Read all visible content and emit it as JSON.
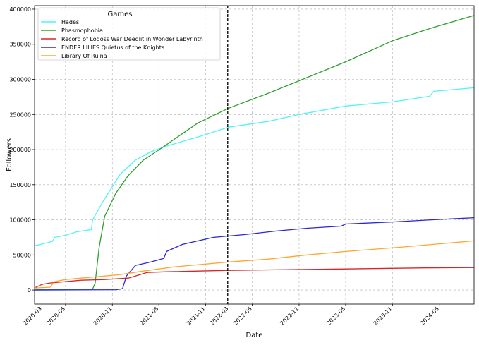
{
  "chart_data": {
    "type": "line",
    "title": "",
    "xlabel": "Date",
    "ylabel": "Followers",
    "xlim": [
      "2020-02-01",
      "2024-10-15"
    ],
    "ylim": [
      -20000,
      405000
    ],
    "grid": true,
    "x_ticks": [
      "2020-03",
      "2020-05",
      "2020-11",
      "2021-05",
      "2021-11",
      "2022-03",
      "2022-05",
      "2022-11",
      "2023-05",
      "2023-11",
      "2024-05"
    ],
    "x_tick_dates": [
      "2020-03-01",
      "2020-06-01",
      "2020-12-01",
      "2021-06-01",
      "2021-12-01",
      "2022-03-01",
      "2022-06-01",
      "2022-12-01",
      "2023-06-01",
      "2023-12-01",
      "2024-06-01"
    ],
    "y_ticks": [
      0,
      50000,
      100000,
      150000,
      200000,
      250000,
      300000,
      350000,
      400000
    ],
    "legend": {
      "title": "Games",
      "location": "top-left"
    },
    "annotations": [
      {
        "type": "vline",
        "x": "2022-02-25",
        "style": "dashed",
        "color": "#000000"
      }
    ],
    "series": [
      {
        "name": "Hades",
        "color": "#4ff5f0",
        "points": [
          [
            "2020-02-01",
            63000
          ],
          [
            "2020-04-10",
            69000
          ],
          [
            "2020-04-20",
            75000
          ],
          [
            "2020-06-01",
            78000
          ],
          [
            "2020-07-15",
            83000
          ],
          [
            "2020-09-10",
            86000
          ],
          [
            "2020-09-15",
            100000
          ],
          [
            "2020-11-01",
            130000
          ],
          [
            "2021-01-01",
            165000
          ],
          [
            "2021-03-01",
            185000
          ],
          [
            "2021-05-01",
            197000
          ],
          [
            "2021-07-01",
            205000
          ],
          [
            "2021-11-01",
            218000
          ],
          [
            "2022-03-01",
            232000
          ],
          [
            "2022-08-01",
            240000
          ],
          [
            "2022-12-01",
            250000
          ],
          [
            "2023-06-01",
            262000
          ],
          [
            "2023-12-01",
            268000
          ],
          [
            "2024-04-25",
            276000
          ],
          [
            "2024-05-10",
            283000
          ],
          [
            "2024-10-15",
            288000
          ]
        ]
      },
      {
        "name": "Phasmophobia",
        "color": "#2ca02c",
        "points": [
          [
            "2020-02-01",
            1000
          ],
          [
            "2020-09-15",
            1500
          ],
          [
            "2020-09-25",
            10000
          ],
          [
            "2020-10-10",
            60000
          ],
          [
            "2020-11-01",
            105000
          ],
          [
            "2020-12-15",
            138000
          ],
          [
            "2021-02-01",
            163000
          ],
          [
            "2021-04-01",
            185000
          ],
          [
            "2021-06-15",
            203000
          ],
          [
            "2021-08-01",
            215000
          ],
          [
            "2021-11-01",
            238000
          ],
          [
            "2022-03-01",
            259000
          ],
          [
            "2022-08-01",
            280000
          ],
          [
            "2022-12-01",
            298000
          ],
          [
            "2023-06-01",
            325000
          ],
          [
            "2023-12-01",
            355000
          ],
          [
            "2024-05-01",
            373000
          ],
          [
            "2024-10-15",
            391000
          ]
        ]
      },
      {
        "name": "Record of Lodoss War Deedlit in Wonder Labyrinth",
        "color": "#d62728",
        "points": [
          [
            "2020-02-01",
            3000
          ],
          [
            "2020-03-01",
            8000
          ],
          [
            "2020-04-01",
            10000
          ],
          [
            "2020-08-01",
            14000
          ],
          [
            "2020-11-01",
            15000
          ],
          [
            "2021-02-01",
            17000
          ],
          [
            "2021-03-01",
            20000
          ],
          [
            "2021-04-15",
            25000
          ],
          [
            "2021-07-01",
            26000
          ],
          [
            "2022-03-01",
            28000
          ],
          [
            "2023-06-01",
            30000
          ],
          [
            "2024-04-01",
            31500
          ],
          [
            "2024-10-15",
            32000
          ]
        ]
      },
      {
        "name": "ENDER LILIES Quietus of the Knights",
        "color": "#2828d6",
        "points": [
          [
            "2020-02-01",
            0
          ],
          [
            "2020-12-15",
            500
          ],
          [
            "2021-01-10",
            2000
          ],
          [
            "2021-01-25",
            20000
          ],
          [
            "2021-03-01",
            35000
          ],
          [
            "2021-05-01",
            40000
          ],
          [
            "2021-06-20",
            45000
          ],
          [
            "2021-07-01",
            55000
          ],
          [
            "2021-09-01",
            65000
          ],
          [
            "2021-11-01",
            70000
          ],
          [
            "2022-01-01",
            75000
          ],
          [
            "2022-05-01",
            79000
          ],
          [
            "2022-09-01",
            84000
          ],
          [
            "2023-01-01",
            88000
          ],
          [
            "2023-05-15",
            91000
          ],
          [
            "2023-06-01",
            94000
          ],
          [
            "2023-12-01",
            97000
          ],
          [
            "2024-05-01",
            100000
          ],
          [
            "2024-10-15",
            103000
          ]
        ]
      },
      {
        "name": "Library Of Ruina",
        "color": "#ffa530",
        "points": [
          [
            "2020-02-01",
            3000
          ],
          [
            "2020-04-01",
            4000
          ],
          [
            "2020-04-20",
            12000
          ],
          [
            "2020-06-01",
            15000
          ],
          [
            "2020-09-01",
            18000
          ],
          [
            "2021-01-01",
            22000
          ],
          [
            "2021-04-01",
            27000
          ],
          [
            "2021-08-01",
            33000
          ],
          [
            "2022-03-01",
            40000
          ],
          [
            "2022-08-01",
            44000
          ],
          [
            "2023-01-01",
            50000
          ],
          [
            "2023-06-01",
            55000
          ],
          [
            "2024-01-01",
            61000
          ],
          [
            "2024-10-15",
            70000
          ]
        ]
      }
    ]
  }
}
